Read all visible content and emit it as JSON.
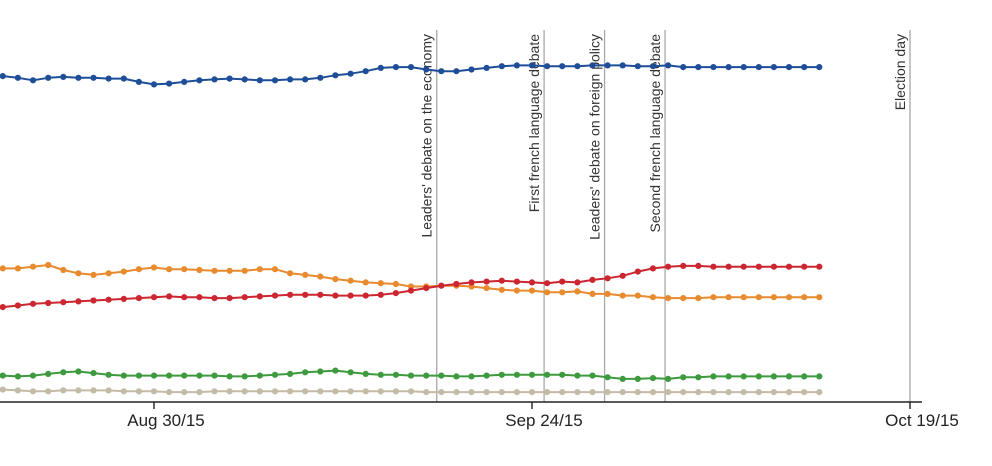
{
  "chart_data": {
    "type": "line",
    "title": "",
    "xlabel": "",
    "ylabel": "",
    "x_axis": {
      "ticks": [
        {
          "label": "Aug 30/15",
          "day": 32
        },
        {
          "label": "Sep 24/15",
          "day": 57
        },
        {
          "label": "Oct 19/15",
          "day": 82
        }
      ],
      "range_days": [
        22,
        84
      ]
    },
    "y_axis": {
      "range": [
        0,
        45
      ],
      "ticks_shown": false
    },
    "events": [
      {
        "label": "Leaders' debate on the economy",
        "day": 50.7
      },
      {
        "label": "First french language debate",
        "day": 57.8
      },
      {
        "label": "Leaders' debate on foreign policy",
        "day": 61.8
      },
      {
        "label": "Second french language debate",
        "day": 65.8
      },
      {
        "label": "Election day",
        "day": 82
      }
    ],
    "x": [
      22,
      23,
      24,
      25,
      26,
      27,
      28,
      29,
      30,
      31,
      32,
      33,
      34,
      35,
      36,
      37,
      38,
      39,
      40,
      41,
      42,
      43,
      44,
      45,
      46,
      47,
      48,
      49,
      50,
      51,
      52,
      53,
      54,
      55,
      56,
      57,
      58,
      59,
      60,
      61,
      62,
      63,
      64,
      65,
      66,
      67,
      68,
      69,
      70,
      71,
      72,
      73,
      74,
      75,
      76
    ],
    "series": [
      {
        "name": "Blue",
        "color": "#1f4e99",
        "values": [
          39.5,
          39.3,
          39.0,
          39.3,
          39.4,
          39.3,
          39.3,
          39.2,
          39.2,
          38.8,
          38.5,
          38.6,
          38.8,
          39.0,
          39.1,
          39.2,
          39.1,
          39.0,
          39.0,
          39.1,
          39.1,
          39.3,
          39.6,
          39.8,
          40.1,
          40.5,
          40.6,
          40.6,
          40.3,
          40.1,
          40.1,
          40.3,
          40.5,
          40.7,
          40.8,
          40.8,
          40.7,
          40.7,
          40.7,
          40.8,
          40.8,
          40.8,
          40.7,
          40.7,
          40.8,
          40.6,
          40.6,
          40.6,
          40.6,
          40.6,
          40.6,
          40.6,
          40.6,
          40.6,
          40.6
        ]
      },
      {
        "name": "Orange",
        "color": "#e88a2e",
        "values": [
          16.2,
          16.2,
          16.4,
          16.6,
          16.0,
          15.6,
          15.4,
          15.6,
          15.8,
          16.1,
          16.3,
          16.1,
          16.1,
          16.0,
          15.9,
          15.9,
          15.9,
          16.1,
          16.1,
          15.6,
          15.4,
          15.2,
          14.9,
          14.7,
          14.5,
          14.4,
          14.3,
          14.0,
          14.0,
          14.1,
          14.1,
          14.0,
          13.8,
          13.6,
          13.5,
          13.5,
          13.3,
          13.3,
          13.4,
          13.1,
          13.1,
          12.9,
          12.9,
          12.7,
          12.6,
          12.6,
          12.6,
          12.7,
          12.7,
          12.7,
          12.7,
          12.7,
          12.7,
          12.7,
          12.7
        ]
      },
      {
        "name": "Red",
        "color": "#cc2630",
        "values": [
          11.5,
          11.7,
          11.9,
          12.0,
          12.1,
          12.2,
          12.3,
          12.4,
          12.5,
          12.6,
          12.7,
          12.8,
          12.7,
          12.7,
          12.6,
          12.6,
          12.7,
          12.8,
          12.9,
          13.0,
          13.0,
          13.0,
          12.9,
          12.9,
          12.9,
          13.0,
          13.2,
          13.5,
          13.8,
          14.1,
          14.3,
          14.5,
          14.6,
          14.7,
          14.6,
          14.5,
          14.4,
          14.6,
          14.5,
          14.8,
          15.0,
          15.3,
          15.8,
          16.2,
          16.4,
          16.5,
          16.5,
          16.4,
          16.4,
          16.4,
          16.4,
          16.4,
          16.4,
          16.4,
          16.4
        ]
      },
      {
        "name": "Green",
        "color": "#3e9a3e",
        "values": [
          3.2,
          3.1,
          3.2,
          3.4,
          3.6,
          3.7,
          3.5,
          3.3,
          3.2,
          3.2,
          3.2,
          3.2,
          3.2,
          3.2,
          3.2,
          3.1,
          3.1,
          3.2,
          3.3,
          3.4,
          3.6,
          3.7,
          3.8,
          3.6,
          3.4,
          3.3,
          3.3,
          3.2,
          3.2,
          3.2,
          3.1,
          3.1,
          3.2,
          3.3,
          3.3,
          3.3,
          3.3,
          3.3,
          3.2,
          3.2,
          3.0,
          2.8,
          2.8,
          2.9,
          2.8,
          3.0,
          3.0,
          3.1,
          3.1,
          3.1,
          3.1,
          3.1,
          3.1,
          3.1,
          3.1
        ]
      },
      {
        "name": "Gray",
        "color": "#c4bba6",
        "values": [
          1.5,
          1.4,
          1.3,
          1.3,
          1.4,
          1.4,
          1.4,
          1.4,
          1.3,
          1.3,
          1.3,
          1.2,
          1.2,
          1.2,
          1.3,
          1.3,
          1.3,
          1.3,
          1.3,
          1.3,
          1.3,
          1.3,
          1.3,
          1.3,
          1.3,
          1.3,
          1.3,
          1.3,
          1.2,
          1.2,
          1.2,
          1.2,
          1.2,
          1.2,
          1.2,
          1.2,
          1.2,
          1.2,
          1.2,
          1.2,
          1.2,
          1.2,
          1.2,
          1.2,
          1.2,
          1.2,
          1.2,
          1.2,
          1.2,
          1.2,
          1.2,
          1.2,
          1.2,
          1.2,
          1.2
        ]
      }
    ]
  }
}
